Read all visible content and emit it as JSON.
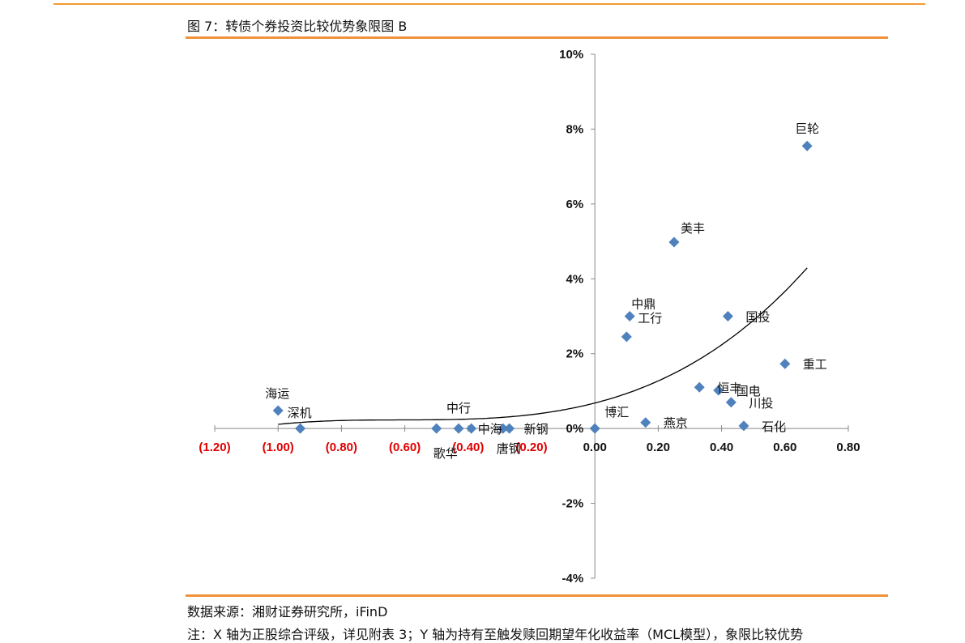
{
  "figure_title": "图 7：转债个券投资比较优势象限图 B",
  "source_text": "数据来源：湘财证券研究所，iFinD",
  "note_text": "注：X 轴为正股综合评级，详见附表 3；Y 轴为持有至触发赎回期望年化收益率（MCL模型），象限比较优势",
  "colors": {
    "accent": "#f0923a",
    "marker": "#4f81bd",
    "negative_tick": "#e00000",
    "axis": "#888888",
    "trend": "#000000"
  },
  "chart_data": {
    "type": "scatter",
    "xlim": [
      -1.2,
      0.8
    ],
    "ylim": [
      -4,
      10
    ],
    "x_ticks": [
      -1.2,
      -1.0,
      -0.8,
      -0.6,
      -0.4,
      -0.2,
      0.0,
      0.2,
      0.4,
      0.6,
      0.8
    ],
    "x_tick_labels": [
      "(1.20)",
      "(1.00)",
      "(0.80)",
      "(0.60)",
      "(0.40)",
      "(0.20)",
      "0.00",
      "0.20",
      "0.40",
      "0.60",
      "0.80"
    ],
    "y_ticks": [
      -4,
      -2,
      0,
      2,
      4,
      6,
      8,
      10
    ],
    "y_tick_labels": [
      "-4%",
      "-2%",
      "0%",
      "2%",
      "4%",
      "6%",
      "8%",
      "10%"
    ],
    "grid": false,
    "legend": "none",
    "trendline": {
      "type": "cubic",
      "x_range": [
        -1.0,
        0.67
      ]
    },
    "points": [
      {
        "name": "巨轮",
        "x": 0.67,
        "y": 7.55
      },
      {
        "name": "美丰",
        "x": 0.25,
        "y": 4.98
      },
      {
        "name": "中鼎",
        "x": 0.11,
        "y": 3.0
      },
      {
        "name": "工行",
        "x": 0.1,
        "y": 2.45
      },
      {
        "name": "国投",
        "x": 0.42,
        "y": 3.0
      },
      {
        "name": "重工",
        "x": 0.6,
        "y": 1.73
      },
      {
        "name": "恒丰",
        "x": 0.33,
        "y": 1.1
      },
      {
        "name": "国电",
        "x": 0.39,
        "y": 1.02
      },
      {
        "name": "川投",
        "x": 0.43,
        "y": 0.7
      },
      {
        "name": "石化",
        "x": 0.47,
        "y": 0.07
      },
      {
        "name": "燕京",
        "x": 0.16,
        "y": 0.16
      },
      {
        "name": "博汇",
        "x": 0.0,
        "y": 0.0
      },
      {
        "name": "海运",
        "x": -1.0,
        "y": 0.48
      },
      {
        "name": "深机",
        "x": -0.93,
        "y": 0.0
      },
      {
        "name": "中行",
        "x": -0.43,
        "y": 0.0
      },
      {
        "name": "歌华",
        "x": -0.5,
        "y": 0.0
      },
      {
        "name": "中海",
        "x": -0.39,
        "y": 0.0
      },
      {
        "name": "新钢",
        "x": -0.27,
        "y": 0.0
      },
      {
        "name": "唐钢",
        "x": -0.29,
        "y": 0.0
      }
    ]
  }
}
